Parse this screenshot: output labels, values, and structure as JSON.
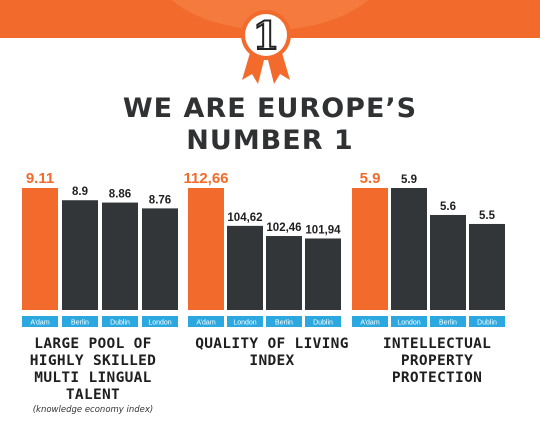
{
  "headline": {
    "line1": "WE ARE EUROPE’S",
    "line2": "NUMBER 1"
  },
  "badge": {
    "number": "1"
  },
  "colors": {
    "highlight": "#f26b2c",
    "bar": "#333639",
    "axis_label_bg": "#2aa8df",
    "text": "#2f3133"
  },
  "chart_data": [
    {
      "type": "bar",
      "categories": [
        "A’dam",
        "Berlin",
        "Dublin",
        "London"
      ],
      "values": [
        9.11,
        8.9,
        8.86,
        8.76
      ],
      "value_labels": [
        "9.11",
        "8.9",
        "8.86",
        "8.76"
      ],
      "highlight_index": 0,
      "title_lines": [
        "LARGE POOL OF",
        "HIGHLY SKILLED",
        "MULTI LINGUAL",
        "TALENT"
      ],
      "subtitle": "(knowledge economy index)"
    },
    {
      "type": "bar",
      "categories": [
        "A’dam",
        "London",
        "Berlin",
        "Dublin"
      ],
      "values": [
        112.66,
        104.62,
        102.46,
        101.94
      ],
      "value_labels": [
        "112,66",
        "104,62",
        "102,46",
        "101,94"
      ],
      "highlight_index": 0,
      "title_lines": [
        "QUALITY OF LIVING",
        "INDEX"
      ],
      "subtitle": ""
    },
    {
      "type": "bar",
      "categories": [
        "A’dam",
        "London",
        "Berlin",
        "Dublin"
      ],
      "values": [
        5.9,
        5.9,
        5.6,
        5.5
      ],
      "value_labels": [
        "5.9",
        "5.9",
        "5.6",
        "5.5"
      ],
      "highlight_index": 0,
      "title_lines": [
        "INTELLECTUAL",
        "PROPERTY",
        "PROTECTION"
      ],
      "subtitle": ""
    }
  ]
}
